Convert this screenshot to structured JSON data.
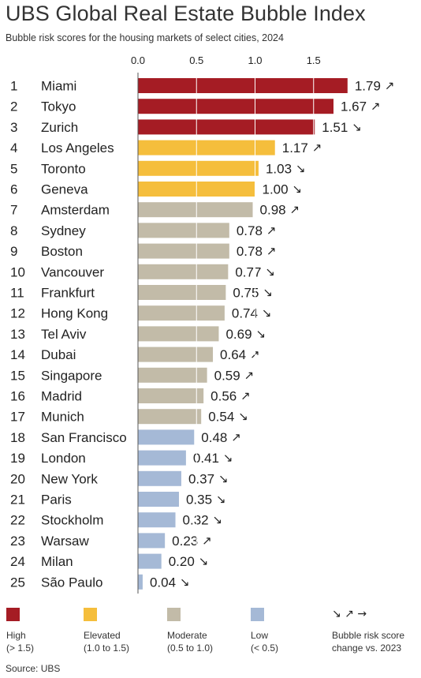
{
  "title": "UBS Global Real Estate Bubble Index",
  "subtitle": "Bubble risk scores for the housing markets of select cities, 2024",
  "source": "Source: UBS",
  "colors": {
    "high": "#A51C24",
    "elevated": "#F5BE3C",
    "moderate": "#C2BBA8",
    "low": "#A5B9D6"
  },
  "chart_data": {
    "type": "bar",
    "orientation": "horizontal",
    "xlim": [
      0,
      1.8
    ],
    "xticks": [
      "0.0",
      "0.5",
      "1.0",
      "1.5"
    ],
    "xtick_values": [
      0,
      0.5,
      1.0,
      1.5
    ],
    "grid": true,
    "rows": [
      {
        "rank": "1",
        "city": "Miami",
        "value": 1.79,
        "label": "1.79",
        "trend": "↗",
        "category": "high"
      },
      {
        "rank": "2",
        "city": "Tokyo",
        "value": 1.67,
        "label": "1.67",
        "trend": "↗",
        "category": "high"
      },
      {
        "rank": "3",
        "city": "Zurich",
        "value": 1.51,
        "label": "1.51",
        "trend": "↘",
        "category": "high"
      },
      {
        "rank": "4",
        "city": "Los Angeles",
        "value": 1.17,
        "label": "1.17",
        "trend": "↗",
        "category": "elevated"
      },
      {
        "rank": "5",
        "city": "Toronto",
        "value": 1.03,
        "label": "1.03",
        "trend": "↘",
        "category": "elevated"
      },
      {
        "rank": "6",
        "city": "Geneva",
        "value": 1.0,
        "label": "1.00",
        "trend": "↘",
        "category": "elevated"
      },
      {
        "rank": "7",
        "city": "Amsterdam",
        "value": 0.98,
        "label": "0.98",
        "trend": "↗",
        "category": "moderate"
      },
      {
        "rank": "8",
        "city": "Sydney",
        "value": 0.78,
        "label": "0.78",
        "trend": "↗",
        "category": "moderate"
      },
      {
        "rank": "9",
        "city": "Boston",
        "value": 0.78,
        "label": "0.78",
        "trend": "↗",
        "category": "moderate"
      },
      {
        "rank": "10",
        "city": "Vancouver",
        "value": 0.77,
        "label": "0.77",
        "trend": "↘",
        "category": "moderate"
      },
      {
        "rank": "11",
        "city": "Frankfurt",
        "value": 0.75,
        "label": "0.75",
        "trend": "↘",
        "category": "moderate"
      },
      {
        "rank": "12",
        "city": "Hong Kong",
        "value": 0.74,
        "label": "0.74",
        "trend": "↘",
        "category": "moderate"
      },
      {
        "rank": "13",
        "city": "Tel Aviv",
        "value": 0.69,
        "label": "0.69",
        "trend": "↘",
        "category": "moderate"
      },
      {
        "rank": "14",
        "city": "Dubai",
        "value": 0.64,
        "label": "0.64",
        "trend": "↗",
        "category": "moderate"
      },
      {
        "rank": "15",
        "city": "Singapore",
        "value": 0.59,
        "label": "0.59",
        "trend": "↗",
        "category": "moderate"
      },
      {
        "rank": "16",
        "city": "Madrid",
        "value": 0.56,
        "label": "0.56",
        "trend": "↗",
        "category": "moderate"
      },
      {
        "rank": "17",
        "city": "Munich",
        "value": 0.54,
        "label": "0.54",
        "trend": "↘",
        "category": "moderate"
      },
      {
        "rank": "18",
        "city": "San Francisco",
        "value": 0.48,
        "label": "0.48",
        "trend": "↗",
        "category": "low"
      },
      {
        "rank": "19",
        "city": "London",
        "value": 0.41,
        "label": "0.41",
        "trend": "↘",
        "category": "low"
      },
      {
        "rank": "20",
        "city": "New York",
        "value": 0.37,
        "label": "0.37",
        "trend": "↘",
        "category": "low"
      },
      {
        "rank": "21",
        "city": "Paris",
        "value": 0.35,
        "label": "0.35",
        "trend": "↘",
        "category": "low"
      },
      {
        "rank": "22",
        "city": "Stockholm",
        "value": 0.32,
        "label": "0.32",
        "trend": "↘",
        "category": "low"
      },
      {
        "rank": "23",
        "city": "Warsaw",
        "value": 0.23,
        "label": "0.23",
        "trend": "↗",
        "category": "low"
      },
      {
        "rank": "24",
        "city": "Milan",
        "value": 0.2,
        "label": "0.20",
        "trend": "↘",
        "category": "low"
      },
      {
        "rank": "25",
        "city": "São Paulo",
        "value": 0.04,
        "label": "0.04",
        "trend": "↘",
        "category": "low"
      }
    ]
  },
  "legend": {
    "high": {
      "label": "High",
      "range": "(> 1.5)"
    },
    "elevated": {
      "label": "Elevated",
      "range": "(1.0 to 1.5)"
    },
    "moderate": {
      "label": "Moderate",
      "range": "(0.5 to 1.0)"
    },
    "low": {
      "label": "Low",
      "range": "(< 0.5)"
    },
    "trend": {
      "arrows": "↘ ↗ →",
      "line1": "Bubble risk score",
      "line2": "change vs. 2023"
    }
  }
}
